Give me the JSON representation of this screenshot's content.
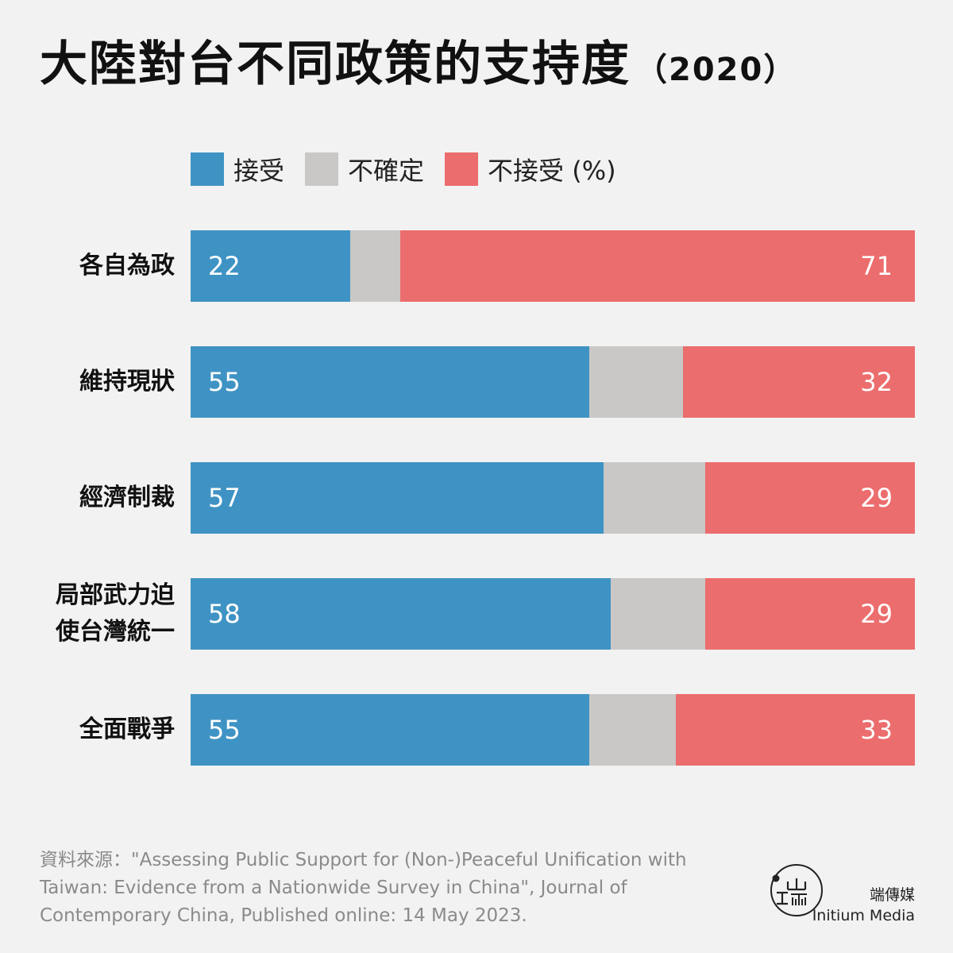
{
  "title": "大陸對台不同政策的支持度",
  "title_year": "（2020）",
  "legend": [
    {
      "label": "接受",
      "color": "#3f93c4"
    },
    {
      "label": "不確定",
      "color": "#c9c8c6"
    },
    {
      "label": "不接受 (%)",
      "color": "#ec6d6d"
    }
  ],
  "chart_data": {
    "type": "bar",
    "orientation": "horizontal-stacked-100",
    "categories": [
      [
        "各自為政"
      ],
      [
        "維持現狀"
      ],
      [
        "經濟制裁"
      ],
      [
        "局部武力迫",
        "使台灣統一"
      ],
      [
        "全面戰爭"
      ]
    ],
    "series": [
      {
        "name": "接受",
        "color": "#3f93c4",
        "values": [
          22,
          55,
          57,
          58,
          55
        ]
      },
      {
        "name": "不確定",
        "color": "#c9c8c6",
        "values": [
          7,
          13,
          14,
          13,
          12
        ]
      },
      {
        "name": "不接受",
        "color": "#ec6d6d",
        "values": [
          71,
          32,
          29,
          29,
          33
        ]
      }
    ],
    "unit": "(%)",
    "data_labels": {
      "接受": true,
      "不確定": false,
      "不接受": true
    }
  },
  "source": "資料來源：\"Assessing Public Support for (Non-)Peaceful Unification with Taiwan: Evidence from a Nationwide Survey in China\", Journal of Contemporary China, Published online: 14 May 2023.",
  "brand": {
    "cn": "端傳媒",
    "en": "Initium Media"
  }
}
